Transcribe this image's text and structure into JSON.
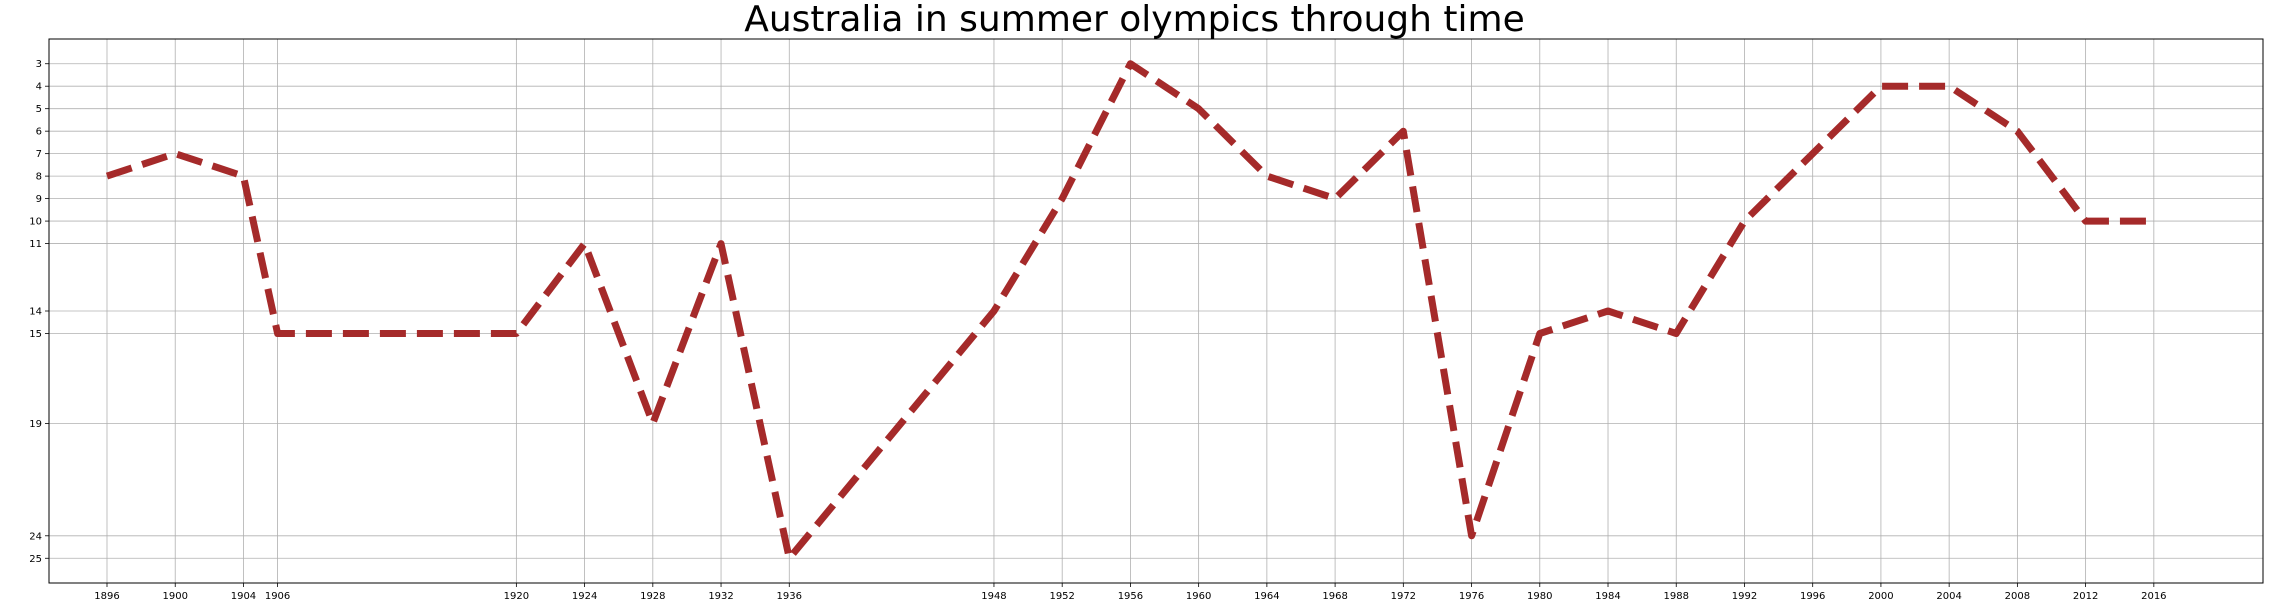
{
  "chart_data": {
    "type": "line",
    "title": "Australia in summer olympics through time",
    "xlabel": "",
    "ylabel": "",
    "x": [
      1896,
      1900,
      1904,
      1906,
      1920,
      1924,
      1928,
      1932,
      1936,
      1948,
      1952,
      1956,
      1960,
      1964,
      1968,
      1972,
      1976,
      1980,
      1984,
      1988,
      1992,
      1996,
      2000,
      2004,
      2008,
      2012,
      2016
    ],
    "series": [
      {
        "values": [
          8,
          7,
          8,
          15,
          15,
          11,
          19,
          11,
          25,
          14,
          9,
          3,
          5,
          8,
          9,
          6,
          24,
          15,
          14,
          15,
          10,
          7,
          4,
          4,
          6,
          10,
          10
        ]
      }
    ],
    "xticks": [
      1896,
      1900,
      1904,
      1906,
      1920,
      1924,
      1928,
      1932,
      1936,
      1948,
      1952,
      1956,
      1960,
      1964,
      1968,
      1972,
      1976,
      1980,
      1984,
      1988,
      1992,
      1996,
      2000,
      2004,
      2008,
      2012,
      2016
    ],
    "yticks": [
      3,
      4,
      5,
      6,
      7,
      8,
      9,
      10,
      11,
      14,
      15,
      19,
      24,
      25
    ],
    "xlim": [
      1892.6,
      2022.4
    ],
    "ylim": [
      26.1,
      1.9
    ],
    "y_inverted": true,
    "grid": true,
    "line_style": "dashed",
    "color": "#a52a2a"
  }
}
